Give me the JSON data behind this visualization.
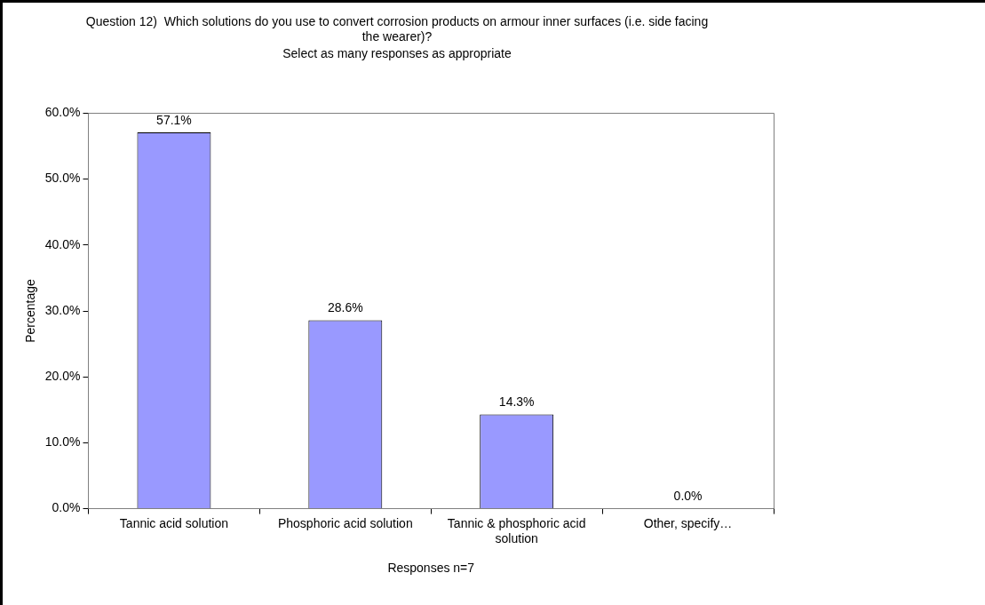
{
  "chart_data": {
    "type": "bar",
    "title": "Question 12)  Which solutions do you use to convert corrosion products on armour inner surfaces (i.e. side facing the wearer)?",
    "subtitle": "Select as many responses as appropriate",
    "xlabel": "Responses n=7",
    "ylabel": "Percentage",
    "categories": [
      "Tannic acid solution",
      "Phosphoric acid solution",
      "Tannic & phosphoric acid solution",
      "Other, specify…"
    ],
    "values": [
      57.1,
      28.6,
      14.3,
      0.0
    ],
    "color": "#9999ff",
    "value_labels": [
      "57.1%",
      "28.6%",
      "14.3%",
      "0.0%"
    ],
    "ylim": [
      0,
      60
    ],
    "yticks": [
      {
        "value": 0,
        "label": "0.0%"
      },
      {
        "value": 10,
        "label": "10.0%"
      },
      {
        "value": 20,
        "label": "20.0%"
      },
      {
        "value": 30,
        "label": "30.0%"
      },
      {
        "value": 40,
        "label": "40.0%"
      },
      {
        "value": 50,
        "label": "50.0%"
      },
      {
        "value": 60,
        "label": "60.0%"
      }
    ],
    "grid": false,
    "legend": false
  }
}
